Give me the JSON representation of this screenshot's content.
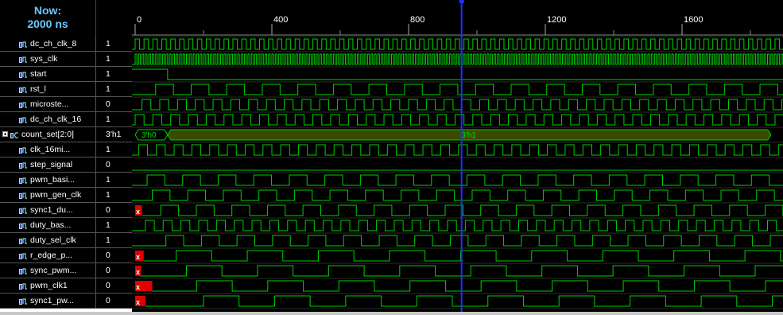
{
  "header": {
    "now_label": "Now:",
    "now_time": "2000 ns"
  },
  "timeline": {
    "start_ns": 0,
    "end_ns": 1860,
    "cursor_ns": 955,
    "ticks": [
      0,
      400,
      800,
      1200,
      1600
    ]
  },
  "colors": {
    "wave": "#00d000",
    "bus_fill": "#3a4a00",
    "bus_text": "#00e000",
    "cursor": "#2030ff",
    "x_mark": "#e00000"
  },
  "signals": [
    {
      "name": "dc_ch_clk_8",
      "value": "1",
      "icon": "signal-icon",
      "kind": "clock",
      "period_ns": 26,
      "phase_ns": 0
    },
    {
      "name": "sys_clk",
      "value": "1",
      "icon": "signal-icon",
      "kind": "clock",
      "period_ns": 10,
      "phase_ns": 0
    },
    {
      "name": "start",
      "value": "1",
      "icon": "signal-icon",
      "kind": "step",
      "edges_ns": [
        95
      ],
      "initial": 1
    },
    {
      "name": "rst_l",
      "value": "1",
      "icon": "signal-icon",
      "kind": "clock",
      "period_ns": 104,
      "phase_ns": 60
    },
    {
      "name": "microste...",
      "value": "0",
      "icon": "signal-icon",
      "kind": "clock",
      "period_ns": 52,
      "phase_ns": 20
    },
    {
      "name": "dc_ch_clk_16",
      "value": "1",
      "icon": "signal-icon",
      "kind": "clock",
      "period_ns": 52,
      "phase_ns": 0
    },
    {
      "name": "count_set[2:0]",
      "value": "3'h1",
      "icon": "bus-icon",
      "kind": "bus",
      "segments": [
        {
          "from_ns": 0,
          "to_ns": 95,
          "label": "3'h0"
        },
        {
          "from_ns": 95,
          "to_ns": 1860,
          "label": "3'h1"
        }
      ]
    },
    {
      "name": "clk_16mi...",
      "value": "1",
      "icon": "signal-icon",
      "kind": "clock",
      "period_ns": 52,
      "phase_ns": 10
    },
    {
      "name": "step_signal",
      "value": "0",
      "icon": "signal-icon",
      "kind": "low"
    },
    {
      "name": "pwm_basi...",
      "value": "1",
      "icon": "signal-icon",
      "kind": "clock",
      "period_ns": 104,
      "phase_ns": 35
    },
    {
      "name": "pwm_gen_clk",
      "value": "1",
      "icon": "signal-icon",
      "kind": "clock",
      "period_ns": 104,
      "phase_ns": 50
    },
    {
      "name": "sync1_du...",
      "value": "0",
      "icon": "signal-icon",
      "kind": "clock",
      "period_ns": 104,
      "phase_ns": 75,
      "x_until_ns": 20
    },
    {
      "name": "duty_bas...",
      "value": "1",
      "icon": "signal-icon",
      "kind": "clock",
      "period_ns": 52,
      "phase_ns": 30
    },
    {
      "name": "duty_sel_clk",
      "value": "1",
      "icon": "signal-icon",
      "kind": "clock",
      "period_ns": 104,
      "phase_ns": 90
    },
    {
      "name": "r_edge_p...",
      "value": "0",
      "icon": "signal-icon",
      "kind": "clock",
      "period_ns": 208,
      "phase_ns": 120,
      "x_until_ns": 25
    },
    {
      "name": "sync_pwm...",
      "value": "0",
      "icon": "signal-icon",
      "kind": "clock",
      "period_ns": 208,
      "phase_ns": 150,
      "x_until_ns": 15
    },
    {
      "name": "pwm_clk1",
      "value": "0",
      "icon": "signal-icon",
      "kind": "clock",
      "period_ns": 208,
      "phase_ns": 180,
      "x_until_ns": 50
    },
    {
      "name": "sync1_pw...",
      "value": "0",
      "icon": "signal-icon",
      "kind": "clock",
      "period_ns": 208,
      "phase_ns": 200,
      "x_until_ns": 30
    }
  ]
}
